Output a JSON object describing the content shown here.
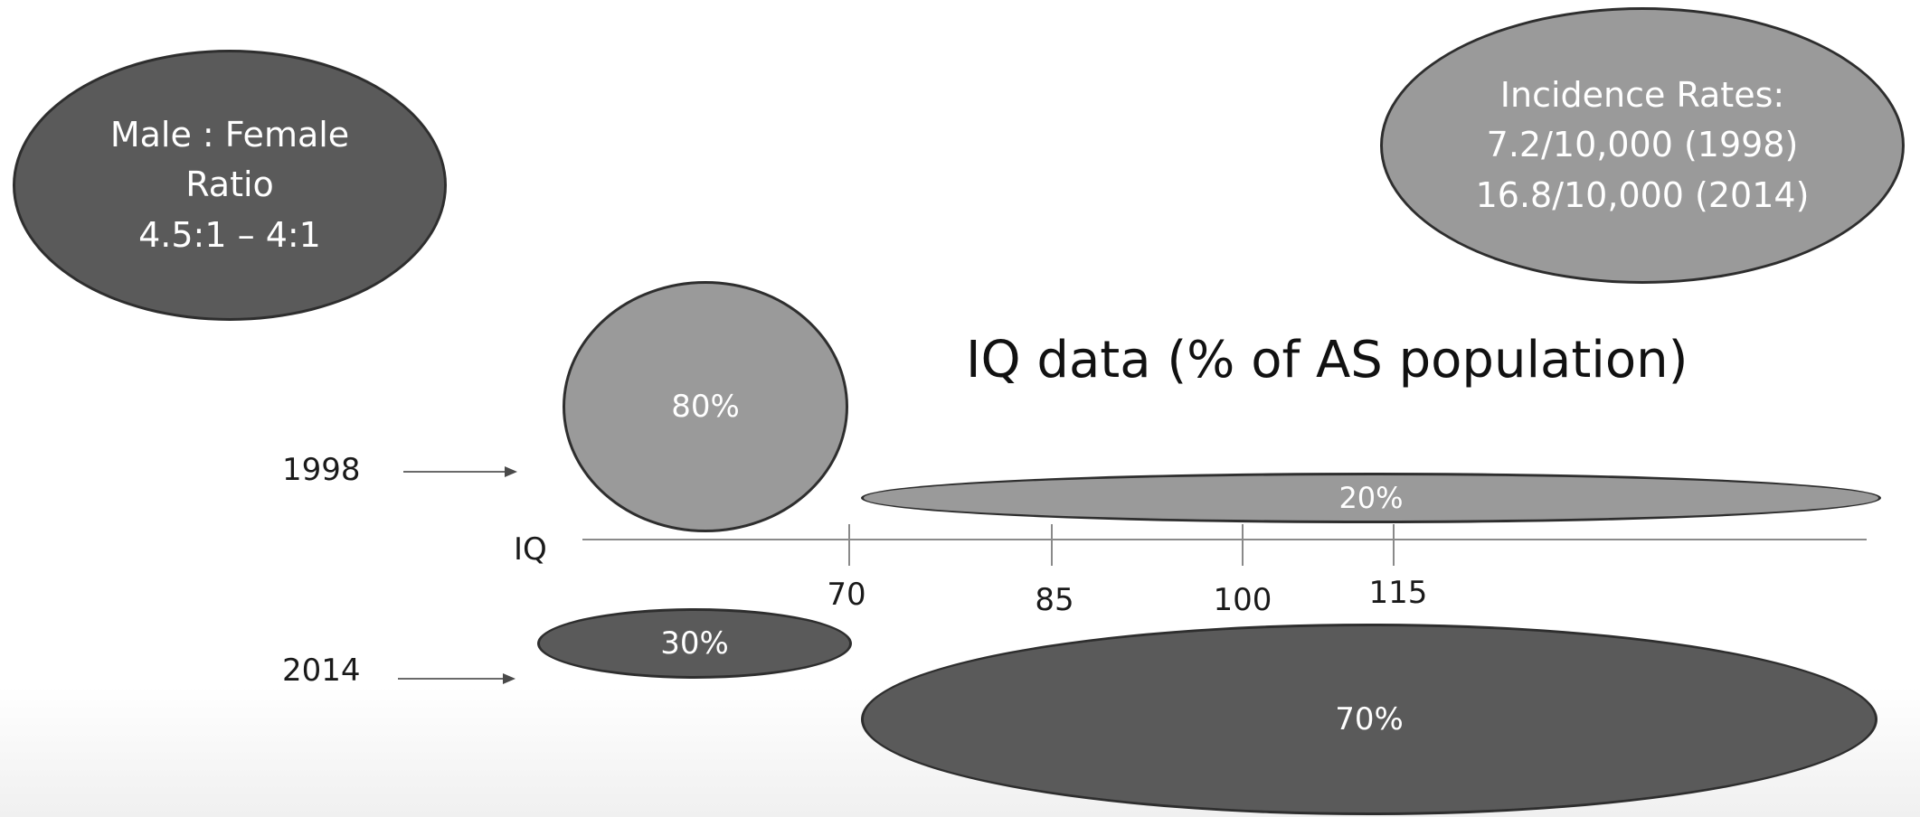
{
  "stats": {
    "ratio": {
      "line1": "Male : Female",
      "line2": "Ratio",
      "line3": "4.5:1 – 4:1"
    },
    "incidence": {
      "line1": "Incidence Rates:",
      "line2": "7.2/10,000 (1998)",
      "line3": "16.8/10,000 (2014)"
    }
  },
  "iq_chart": {
    "title": "IQ data (% of AS population)",
    "axis_label": "IQ",
    "ticks": [
      "70",
      "85",
      "100",
      "115"
    ],
    "years": [
      {
        "year": "1998",
        "groups": [
          {
            "range": "below 70",
            "percent": "80%",
            "tone": "light"
          },
          {
            "range": "above 70",
            "percent": "20%",
            "tone": "light"
          }
        ]
      },
      {
        "year": "2014",
        "groups": [
          {
            "range": "below 70",
            "percent": "30%",
            "tone": "dark"
          },
          {
            "range": "above 70",
            "percent": "70%",
            "tone": "dark"
          }
        ]
      }
    ]
  },
  "colors": {
    "dark_fill": "#5a5a5a",
    "light_fill": "#9a9a9a",
    "outline": "#2e2e2e",
    "text_on_fill": "#ffffff",
    "axis": "#8a8a8a"
  }
}
